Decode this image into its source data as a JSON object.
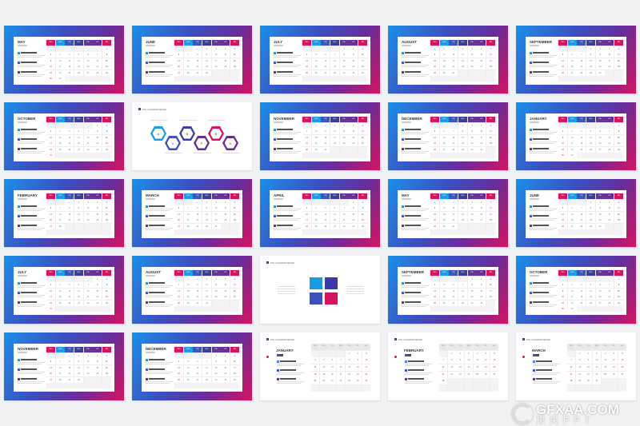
{
  "weekdays": [
    "SUN",
    "MON",
    "TUE",
    "WED",
    "THU",
    "FRI",
    "SAT"
  ],
  "header_colors": [
    "#d8125e",
    "#1a9be8",
    "#3f51c0",
    "#3a3aa8",
    "#5a3aa0",
    "#6a2c9a",
    "#d8125e"
  ],
  "section_title": "2021 CALENDAR DESIGN",
  "hex_labels": [
    "A",
    "V",
    "B",
    "P",
    "B",
    "D"
  ],
  "slides": [
    {
      "type": "grad",
      "month": "MAY",
      "start": 6,
      "days": 31
    },
    {
      "type": "grad",
      "month": "JUNE",
      "start": 2,
      "days": 30
    },
    {
      "type": "grad",
      "month": "JULY",
      "start": 4,
      "days": 31
    },
    {
      "type": "grad",
      "month": "AUGUST",
      "start": 0,
      "days": 31
    },
    {
      "type": "grad",
      "month": "SEPTEMBER",
      "start": 3,
      "days": 30
    },
    {
      "type": "grad",
      "month": "OCTOBER",
      "start": 5,
      "days": 31
    },
    {
      "type": "hex"
    },
    {
      "type": "grad",
      "month": "NOVEMBER",
      "start": 1,
      "days": 30
    },
    {
      "type": "grad",
      "month": "DECEMBER",
      "start": 3,
      "days": 31
    },
    {
      "type": "grad",
      "month": "JANUARY",
      "start": 6,
      "days": 31
    },
    {
      "type": "grad",
      "month": "FEBRUARY",
      "start": 2,
      "days": 28
    },
    {
      "type": "grad",
      "month": "MARCH",
      "start": 2,
      "days": 31
    },
    {
      "type": "grad",
      "month": "APRIL",
      "start": 5,
      "days": 30
    },
    {
      "type": "grad",
      "month": "MAY",
      "start": 0,
      "days": 31
    },
    {
      "type": "grad",
      "month": "JUNE",
      "start": 3,
      "days": 30
    },
    {
      "type": "grad",
      "month": "JULY",
      "start": 5,
      "days": 31
    },
    {
      "type": "grad",
      "month": "AUGUST",
      "start": 1,
      "days": 31
    },
    {
      "type": "quad"
    },
    {
      "type": "grad",
      "month": "SEPTEMBER",
      "start": 4,
      "days": 30
    },
    {
      "type": "grad",
      "month": "OCTOBER",
      "start": 6,
      "days": 31
    },
    {
      "type": "grad",
      "month": "NOVEMBER",
      "start": 2,
      "days": 30
    },
    {
      "type": "grad",
      "month": "DECEMBER",
      "start": 4,
      "days": 31
    },
    {
      "type": "plaincal",
      "month": "JANUARY",
      "start": 4,
      "days": 31
    },
    {
      "type": "plaincal",
      "month": "FEBRUARY",
      "start": 1,
      "days": 28
    },
    {
      "type": "plaincal",
      "month": "MARCH",
      "start": 1,
      "days": 31
    }
  ],
  "event_colors": [
    "#1a9be8",
    "#3f51c0",
    "#6a2c9a"
  ],
  "watermark": {
    "brand": "GFXAA.COM",
    "sub": "顶尖PPT"
  }
}
